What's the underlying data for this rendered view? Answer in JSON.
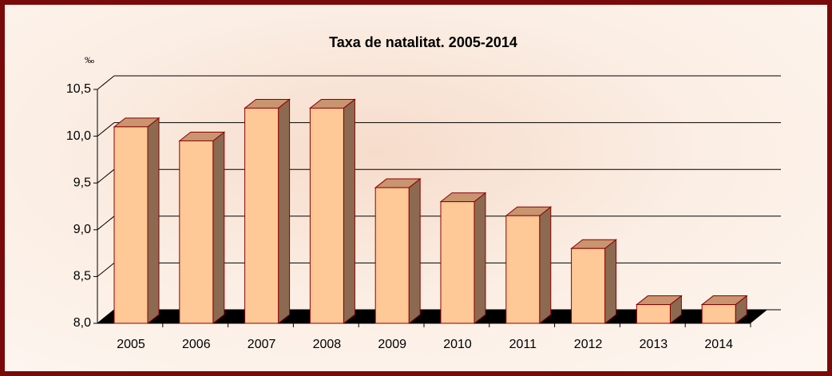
{
  "chart_data": {
    "type": "bar3d",
    "title": "Taxa de natalitat. 2005-2014",
    "y_unit": "‰",
    "categories": [
      "2005",
      "2006",
      "2007",
      "2008",
      "2009",
      "2010",
      "2011",
      "2012",
      "2013",
      "2014"
    ],
    "values": [
      10.1,
      9.95,
      10.3,
      10.3,
      9.45,
      9.3,
      9.15,
      8.8,
      8.2,
      8.2
    ],
    "color": "#ffc896",
    "ylim": [
      8.0,
      10.5
    ],
    "yticks": [
      {
        "value": 8.0,
        "label": "8,0"
      },
      {
        "value": 8.5,
        "label": "8,5"
      },
      {
        "value": 9.0,
        "label": "9,0"
      },
      {
        "value": 9.5,
        "label": "9,5"
      },
      {
        "value": 10.0,
        "label": "10,0"
      },
      {
        "value": 10.5,
        "label": "10,5"
      }
    ],
    "grid": true
  }
}
